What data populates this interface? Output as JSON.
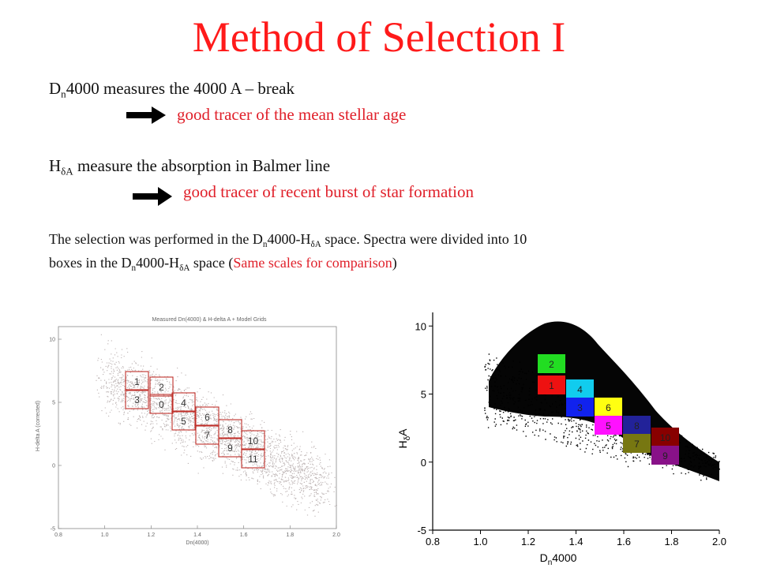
{
  "title": "Method of Selection I",
  "line1": {
    "d": "D",
    "n": "n",
    "rest": "4000 measures the 4000 A – break"
  },
  "line2": {
    "text": "good tracer of the mean stellar age"
  },
  "line3": {
    "h": "H",
    "sub": "δA",
    "rest": " measure the absorption in Balmer line"
  },
  "line4": {
    "text": "good tracer of recent burst of star formation"
  },
  "para": {
    "p1": "The selection was performed in the D",
    "n": "n",
    "p2": "4000-H",
    "sub": "δA",
    "p3": " space. Spectra were divided into 10",
    "p4": "boxes in the D",
    "p5": "4000-H",
    "p6": " space (",
    "red": "Same scales for comparison",
    "p7": ")"
  },
  "left_plot": {
    "title": "Measured Dn(4000) & H-delta A + Model Grids",
    "xlabel": "Dn(4000)",
    "ylabel": "H-delta A (corrected)",
    "xticks": [
      "0.8",
      "1.0",
      "1.2",
      "1.4",
      "1.6",
      "1.8",
      "2.0"
    ],
    "yticks": [
      "10",
      "5",
      "0",
      "-5"
    ],
    "box_labels": [
      "1",
      "2",
      "3",
      "0",
      "4",
      "5",
      "6",
      "7",
      "8",
      "9",
      "10",
      "11"
    ],
    "box_color": "#c0302a"
  },
  "right_plot": {
    "xlabel": "D",
    "xlabel_sub": "n",
    "xlabel_rest": "4000",
    "ylabel": "H",
    "ylabel_sub": "δ",
    "ylabel_rest": "A",
    "xticks": [
      "0.8",
      "1.0",
      "1.2",
      "1.4",
      "1.6",
      "1.8",
      "2.0"
    ],
    "yticks": [
      "10",
      "5",
      "0",
      "-5"
    ],
    "boxes": [
      {
        "label": "2",
        "color": "#22dd22"
      },
      {
        "label": "1",
        "color": "#ee1111"
      },
      {
        "label": "4",
        "color": "#11ccee"
      },
      {
        "label": "3",
        "color": "#1122ee"
      },
      {
        "label": "6",
        "color": "#ffff11"
      },
      {
        "label": "5",
        "color": "#ff11ff"
      },
      {
        "label": "8",
        "color": "#222299"
      },
      {
        "label": "10",
        "color": "#880000"
      },
      {
        "label": "7",
        "color": "#777711"
      },
      {
        "label": "9",
        "color": "#881188"
      }
    ]
  }
}
